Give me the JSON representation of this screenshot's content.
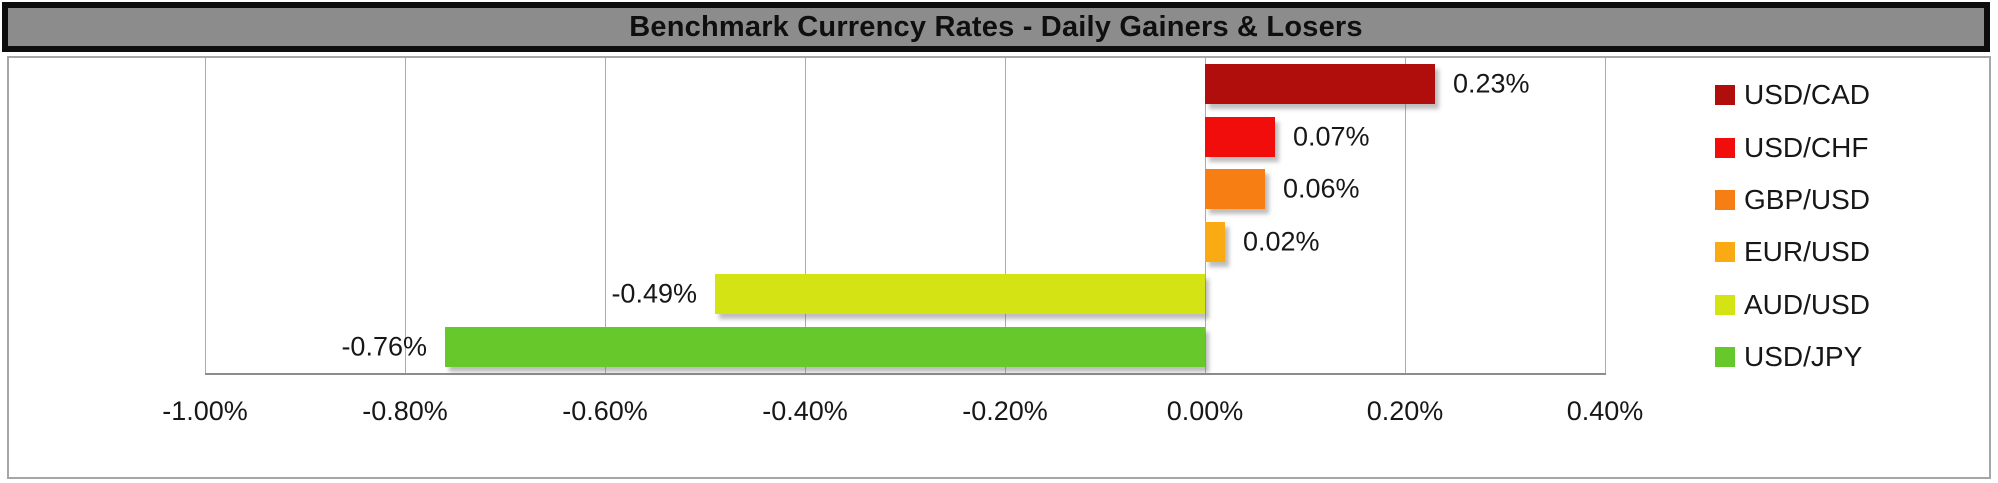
{
  "title_bar": {
    "text": "Benchmark Currency Rates - Daily Gainers & Losers"
  },
  "colors": {
    "title_bar_bg": "#8c8c8c",
    "title_bar_border": "#0d0d0d",
    "chart_border": "#a6a6a6",
    "grid_line": "#ababab",
    "axis_line": "#8c8c8c",
    "text": "#171717"
  },
  "chart_data": {
    "type": "bar",
    "orientation": "horizontal",
    "title": "Benchmark Currency Rates - Daily Gainers & Losers",
    "categories": [
      "USD/CAD",
      "USD/CHF",
      "GBP/USD",
      "EUR/USD",
      "AUD/USD",
      "USD/JPY"
    ],
    "values": [
      0.23,
      0.07,
      0.06,
      0.02,
      -0.49,
      -0.76
    ],
    "value_labels": [
      "0.23%",
      "0.07%",
      "0.06%",
      "0.02%",
      "-0.49%",
      "-0.76%"
    ],
    "bar_colors": [
      "#b00d0d",
      "#f20d0d",
      "#f67e12",
      "#faaa12",
      "#d3e314",
      "#66c82b"
    ],
    "xlim": [
      -1.0,
      0.4
    ],
    "x_ticks": [
      {
        "value": -1.0,
        "label": "-1.00%"
      },
      {
        "value": -0.8,
        "label": "-0.80%"
      },
      {
        "value": -0.6,
        "label": "-0.60%"
      },
      {
        "value": -0.4,
        "label": "-0.40%"
      },
      {
        "value": -0.2,
        "label": "-0.20%"
      },
      {
        "value": 0.0,
        "label": "0.00%"
      },
      {
        "value": 0.2,
        "label": "0.20%"
      },
      {
        "value": 0.4,
        "label": "0.40%"
      }
    ],
    "grid": true,
    "legend_position": "right",
    "legend": {
      "items": [
        {
          "label": "USD/CAD",
          "color": "#b00d0d"
        },
        {
          "label": "USD/CHF",
          "color": "#f20d0d"
        },
        {
          "label": "GBP/USD",
          "color": "#f67e12"
        },
        {
          "label": "EUR/USD",
          "color": "#faaa12"
        },
        {
          "label": "AUD/USD",
          "color": "#d3e314"
        },
        {
          "label": "USD/JPY",
          "color": "#66c82b"
        }
      ]
    }
  }
}
